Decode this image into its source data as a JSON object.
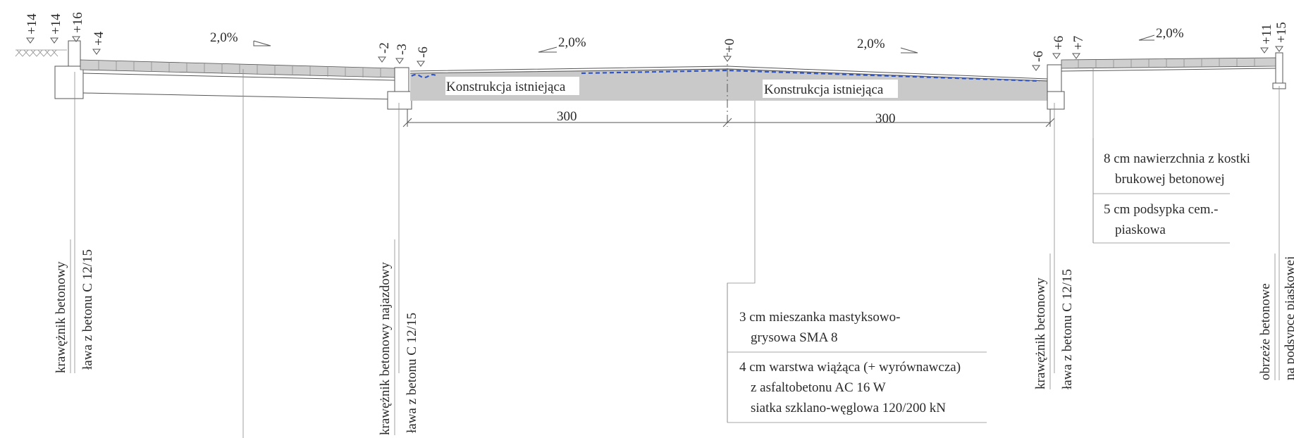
{
  "elevations_left": [
    "+14",
    "+14",
    "+16",
    "+4"
  ],
  "elevations_mid_left": [
    "-2",
    "-3",
    "-6"
  ],
  "elevation_axis": "+0",
  "elevations_mid_right": [
    "-6",
    "+6",
    "+7"
  ],
  "elevations_right": [
    "+11",
    "+15"
  ],
  "slopes": [
    "2,0%",
    "2,0%",
    "2,0%",
    "2,0%"
  ],
  "existing_left": "Konstrukcja istniejąca",
  "existing_right": "Konstrukcja istniejąca",
  "dim_left": "300",
  "dim_right": "300",
  "vertical_labels": [
    {
      "line1": "krawężnik betonowy",
      "line2": "ława z betonu C 12/15"
    },
    {
      "line1": "krawężnik betonowy najazdowy",
      "line2": "ława z betonu C 12/15"
    },
    {
      "line1": "krawężnik betonowy",
      "line2": "ława z betonu C 12/15"
    },
    {
      "line1": "obrzeże betonowe",
      "line2": "na podsypce piaskowej"
    }
  ],
  "sidewalk_layers": [
    {
      "line1": "8 cm nawierzchnia z kostki",
      "line2": "brukowej betonowej"
    },
    {
      "line1": "5 cm podsypka cem.-",
      "line2": "piaskowa"
    }
  ],
  "road_layers": [
    {
      "lines": [
        "3 cm mieszanka mastyksowo-",
        "grysowa SMA 8"
      ]
    },
    {
      "lines": [
        "4 cm warstwa wiążąca (+ wyrównawcza)",
        "z asfaltobetonu AC 16 W",
        "siatka szklano-węglowa 120/200 kN"
      ]
    }
  ],
  "colors": {
    "line": "#555555",
    "fill_existing": "#c9c9c9",
    "overlay": "#2f55c8"
  }
}
